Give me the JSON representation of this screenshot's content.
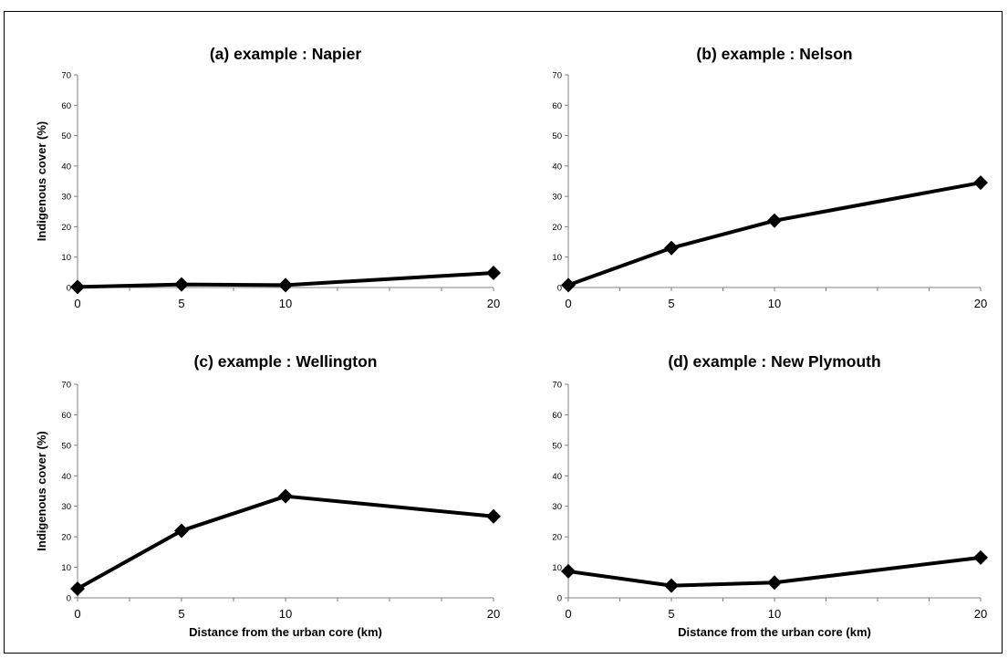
{
  "chart_data": [
    {
      "type": "line",
      "title": "(a) example : Napier",
      "xlabel": "",
      "ylabel": "Indigenous cover (%)",
      "x": [
        0,
        5,
        10,
        20
      ],
      "xticks": [
        0,
        5,
        10,
        20
      ],
      "xlim": [
        0,
        20
      ],
      "ylim": [
        0,
        70
      ],
      "yticks": [
        0,
        10,
        20,
        30,
        40,
        50,
        60,
        70
      ],
      "grid": false,
      "series": [
        {
          "values": [
            0.2,
            1.0,
            0.8,
            4.8
          ]
        }
      ],
      "color": "#000000"
    },
    {
      "type": "line",
      "title": "(b) example : Nelson",
      "xlabel": "",
      "ylabel": "",
      "x": [
        0,
        5,
        10,
        20
      ],
      "xticks": [
        0,
        5,
        10,
        20
      ],
      "xlim": [
        0,
        20
      ],
      "ylim": [
        0,
        70
      ],
      "yticks": [
        0,
        10,
        20,
        30,
        40,
        50,
        60,
        70
      ],
      "grid": false,
      "series": [
        {
          "values": [
            0.8,
            13.0,
            22.0,
            34.5
          ]
        }
      ],
      "color": "#000000"
    },
    {
      "type": "line",
      "title": "(c) example : Wellington",
      "xlabel": "Distance from the urban core (km)",
      "ylabel": "Indigenous cover (%)",
      "x": [
        0,
        5,
        10,
        20
      ],
      "xticks": [
        0,
        5,
        10,
        20
      ],
      "xlim": [
        0,
        20
      ],
      "ylim": [
        0,
        70
      ],
      "yticks": [
        0,
        10,
        20,
        30,
        40,
        50,
        60,
        70
      ],
      "grid": false,
      "series": [
        {
          "values": [
            3.0,
            22.0,
            33.3,
            26.7
          ]
        }
      ],
      "color": "#000000"
    },
    {
      "type": "line",
      "title": "(d) example : New Plymouth",
      "xlabel": "Distance from the urban core (km)",
      "ylabel": "",
      "x": [
        0,
        5,
        10,
        20
      ],
      "xticks": [
        0,
        5,
        10,
        20
      ],
      "xlim": [
        0,
        20
      ],
      "ylim": [
        0,
        70
      ],
      "yticks": [
        0,
        10,
        20,
        30,
        40,
        50,
        60,
        70
      ],
      "grid": false,
      "series": [
        {
          "values": [
            8.7,
            4.0,
            5.0,
            13.2
          ]
        }
      ],
      "color": "#000000"
    }
  ]
}
